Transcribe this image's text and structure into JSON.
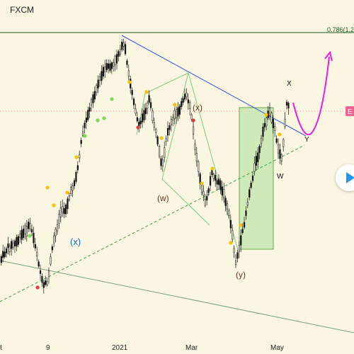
{
  "header": {
    "source": "FXCM"
  },
  "fib_level": {
    "label": "0.786(1.2",
    "color": "#1b5e20"
  },
  "price_marker": {
    "label": "E",
    "color": "#f06292"
  },
  "wave_labels": [
    {
      "text": "(x)",
      "color": "#1565c0"
    },
    {
      "text": "(w)",
      "color": "#6d2f1e"
    },
    {
      "text": "(x)",
      "color": "#6d2f1e"
    },
    {
      "text": "(y)",
      "color": "#6d2f1e"
    },
    {
      "text": "X",
      "color": "#111111"
    },
    {
      "text": "Y",
      "color": "#111111"
    },
    {
      "text": "W",
      "color": "#111111"
    }
  ],
  "x_axis": {
    "ticks": [
      "t",
      "9",
      "2021",
      "Mar",
      "May"
    ]
  },
  "colors": {
    "background": "#fbf6e2",
    "trendline": "#3355dd",
    "channel": "#7ecb7e",
    "box_fill": "#c8e6b0",
    "dashed_support": "#43a047",
    "lower_trend": "#7aa07a",
    "projection": "#e91ee0",
    "marker_yellow": "#f4c20d",
    "marker_green": "#7ed957",
    "marker_red": "#e53935"
  },
  "play_icon": "play-icon",
  "chart_data": {
    "type": "candlestick",
    "source": "FXCM",
    "x_ticks": [
      "t",
      "9",
      "2021",
      "Mar",
      "May"
    ],
    "annotations": [
      "(x)",
      "(w)",
      "(x)",
      "(y)",
      "X",
      "Y",
      "W",
      "0.786(1.2"
    ],
    "grid": false
  }
}
